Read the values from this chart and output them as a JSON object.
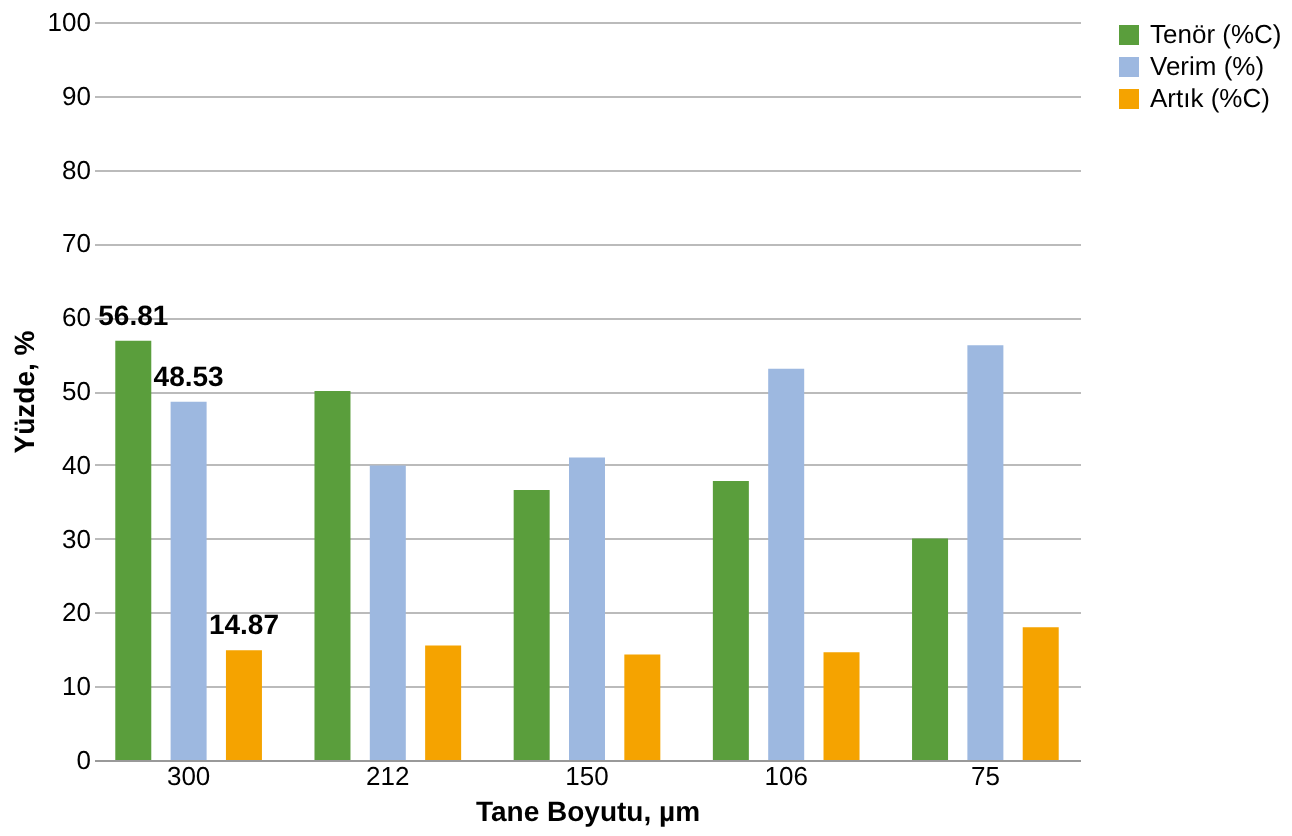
{
  "chart_data": {
    "type": "bar",
    "xlabel": "Tane Boyutu, µm",
    "ylabel": "Yüzde, %",
    "categories": [
      "300",
      "212",
      "150",
      "106",
      "75"
    ],
    "series": [
      {
        "name": "Tenör (%C)",
        "color": "#5a9e3c",
        "values": [
          56.81,
          50,
          36.6,
          37.8,
          30
        ],
        "value_labels": [
          "56.81",
          null,
          null,
          null,
          null
        ]
      },
      {
        "name": "Verim (%)",
        "color": "#9db8e0",
        "values": [
          48.53,
          39.9,
          41,
          53,
          56.2
        ],
        "value_labels": [
          "48.53",
          null,
          null,
          null,
          null
        ]
      },
      {
        "name": "Artık (%C)",
        "color": "#f5a300",
        "values": [
          14.87,
          15.5,
          14.3,
          14.6,
          18
        ],
        "value_labels": [
          "14.87",
          null,
          null,
          null,
          null
        ]
      }
    ],
    "ylim": [
      0,
      100
    ],
    "yticks": [
      0,
      10,
      20,
      30,
      40,
      50,
      60,
      70,
      80,
      90,
      100
    ],
    "grid": "y",
    "legend": "right"
  }
}
